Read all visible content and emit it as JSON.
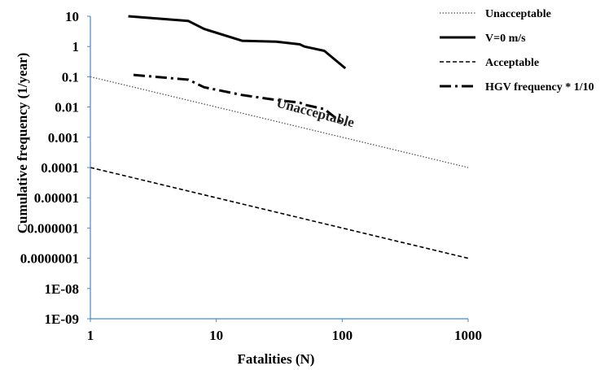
{
  "chart_data": {
    "type": "line",
    "xlabel": "Fatalities (N)",
    "ylabel": "Cumulative frequency (1/year)",
    "xscale": "log",
    "yscale": "log",
    "xlim": [
      1,
      1000
    ],
    "ylim": [
      1e-09,
      10
    ],
    "x_ticks": [
      {
        "value": 1,
        "label": "1"
      },
      {
        "value": 10,
        "label": "10"
      },
      {
        "value": 100,
        "label": "100"
      },
      {
        "value": 1000,
        "label": "1000"
      }
    ],
    "y_ticks": [
      {
        "value": 10,
        "label": "10"
      },
      {
        "value": 1,
        "label": "1"
      },
      {
        "value": 0.1,
        "label": "0.1"
      },
      {
        "value": 0.01,
        "label": "0.01"
      },
      {
        "value": 0.001,
        "label": "0.001"
      },
      {
        "value": 0.0001,
        "label": "0.0001"
      },
      {
        "value": 1e-05,
        "label": "0.00001"
      },
      {
        "value": 1e-06,
        "label": "0.000001"
      },
      {
        "value": 1e-07,
        "label": "0.0000001"
      },
      {
        "value": 1e-08,
        "label": "1E-08"
      },
      {
        "value": 1e-09,
        "label": "1E-09"
      }
    ],
    "grid": false,
    "legend_position": "right",
    "series": [
      {
        "name": "Unacceptable",
        "style": "dotted",
        "color": "#555555",
        "x": [
          1,
          1000
        ],
        "y": [
          0.1,
          0.0001
        ]
      },
      {
        "name": "V=0 m/s",
        "style": "solid",
        "color": "#000000",
        "x": [
          2,
          6,
          8,
          16,
          30,
          46,
          50,
          72,
          106
        ],
        "y": [
          10,
          7,
          3.8,
          1.55,
          1.45,
          1.18,
          1.0,
          0.72,
          0.19
        ]
      },
      {
        "name": "Acceptable",
        "style": "dashed",
        "color": "#000000",
        "x": [
          1,
          1000
        ],
        "y": [
          0.0001,
          1e-07
        ]
      },
      {
        "name": "HGV frequency * 1/10",
        "style": "dashdot",
        "color": "#000000",
        "x": [
          2.2,
          6,
          8,
          16,
          30,
          46,
          50,
          72,
          106
        ],
        "y": [
          0.115,
          0.08,
          0.045,
          0.025,
          0.017,
          0.014,
          0.012,
          0.0085,
          0.0025
        ]
      }
    ],
    "annotations": [
      {
        "text": "Unacceptable",
        "x": 60,
        "y": 0.0047,
        "rotation_deg": 15
      }
    ]
  }
}
